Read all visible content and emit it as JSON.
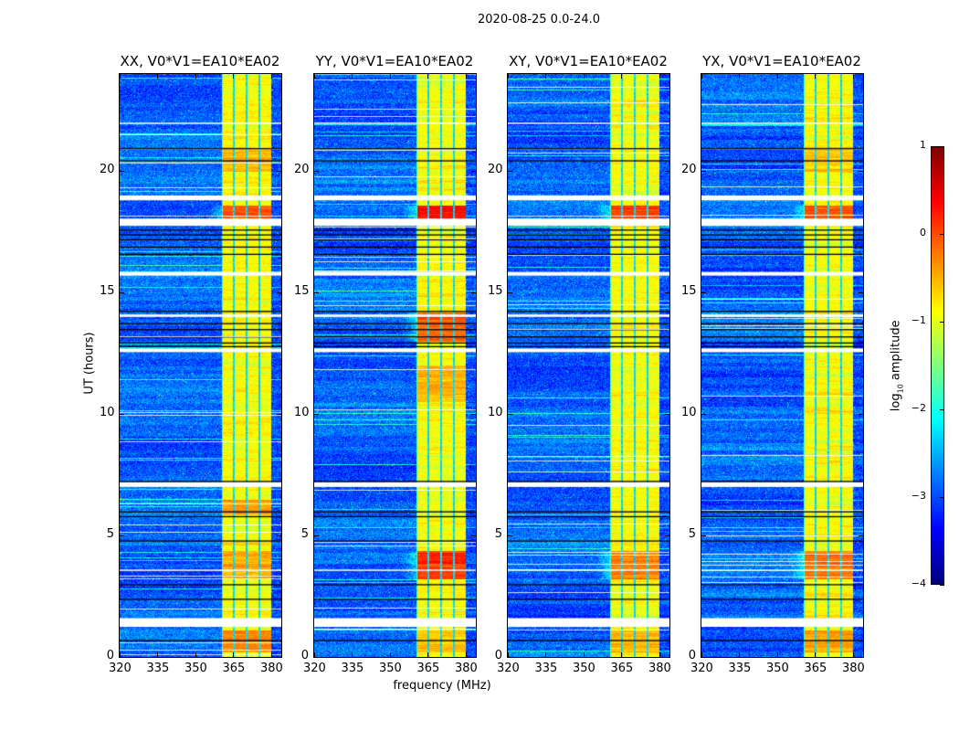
{
  "chart_data": {
    "type": "heatmap",
    "title": "2020-08-25 0.0-24.0",
    "xlabel": "frequency (MHz)",
    "ylabel": "UT (hours)",
    "xlim": [
      320,
      384
    ],
    "ylim": [
      0,
      24
    ],
    "xticks": [
      320,
      335,
      350,
      365,
      380
    ],
    "yticks": [
      0,
      5,
      10,
      15,
      20
    ],
    "colorbar": {
      "label_prefix": "log",
      "label_sub": "10",
      "label_suffix": " amplitude",
      "colormap": "jet",
      "range": [
        -4,
        1
      ],
      "ticks": [
        1,
        0,
        -1,
        -2,
        -3,
        -4
      ],
      "tick_labels": [
        "1",
        "0",
        "−1",
        "−2",
        "−3",
        "−4"
      ]
    },
    "background_level": -3.0,
    "band": {
      "freq_range": [
        360.4,
        380.0
      ],
      "level": -1.0,
      "subband_edges": [
        365,
        370,
        375
      ]
    },
    "flagged_gaps_hours": [
      [
        18.8,
        19.0
      ],
      [
        17.75,
        18.05
      ],
      [
        1.24,
        1.6
      ],
      [
        7.0,
        7.2
      ],
      [
        12.55,
        12.7
      ],
      [
        14.0,
        14.1
      ],
      [
        15.7,
        15.85
      ],
      [
        3.55,
        3.6
      ],
      [
        21.95,
        22.0
      ],
      [
        20.9,
        20.95
      ]
    ],
    "black_lines_hours": [
      20.95,
      20.45,
      17.6,
      17.4,
      17.2,
      16.9,
      16.6,
      14.25,
      13.75,
      13.5,
      13.2,
      12.95,
      12.8,
      7.25,
      6.0,
      5.8,
      2.4,
      0.7,
      3.0,
      4.8
    ],
    "panels": [
      {
        "title": "XX, V0*V1=EA10*EA02",
        "enhanced": [
          [
            17.9,
            18.6,
            0.9
          ],
          [
            5.9,
            6.5,
            0.5
          ],
          [
            3.2,
            4.4,
            0.45
          ],
          [
            0.2,
            1.1,
            0.6
          ],
          [
            20.0,
            21.0,
            0.4
          ]
        ]
      },
      {
        "title": "YY, V0*V1=EA10*EA02",
        "enhanced": [
          [
            17.9,
            18.6,
            1.15
          ],
          [
            3.2,
            4.4,
            1.0
          ],
          [
            13.0,
            14.2,
            0.8
          ],
          [
            0.2,
            1.1,
            0.35
          ],
          [
            10.5,
            12.0,
            0.4
          ]
        ]
      },
      {
        "title": "XY, V0*V1=EA10*EA02",
        "enhanced": [
          [
            17.9,
            18.6,
            0.95
          ],
          [
            3.2,
            4.4,
            0.7
          ],
          [
            0.2,
            1.1,
            0.4
          ]
        ]
      },
      {
        "title": "YX, V0*V1=EA10*EA02",
        "enhanced": [
          [
            17.9,
            18.6,
            0.9
          ],
          [
            3.2,
            4.4,
            0.7
          ],
          [
            0.2,
            1.1,
            0.5
          ],
          [
            20.0,
            21.0,
            0.3
          ]
        ]
      }
    ]
  }
}
